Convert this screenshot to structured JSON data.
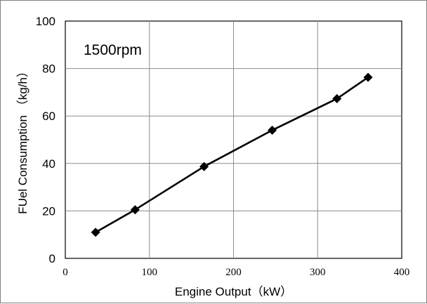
{
  "chart_data": {
    "type": "line",
    "title": "",
    "xlabel": "Engine Output（kW）",
    "ylabel": "FUel Consumption （kg/h）",
    "annotation": "1500rpm",
    "xlim": [
      0,
      400
    ],
    "ylim": [
      0,
      100
    ],
    "xticks": [
      0,
      100,
      200,
      300,
      400
    ],
    "yticks": [
      0,
      20,
      40,
      60,
      80,
      100
    ],
    "grid": true,
    "legend": "none",
    "line_color": "#000000",
    "marker": "diamond",
    "series": [
      {
        "x": [
          36,
          83,
          165,
          246,
          323,
          360
        ],
        "y": [
          11,
          20.5,
          38.7,
          54,
          67.3,
          76.3
        ]
      }
    ]
  }
}
